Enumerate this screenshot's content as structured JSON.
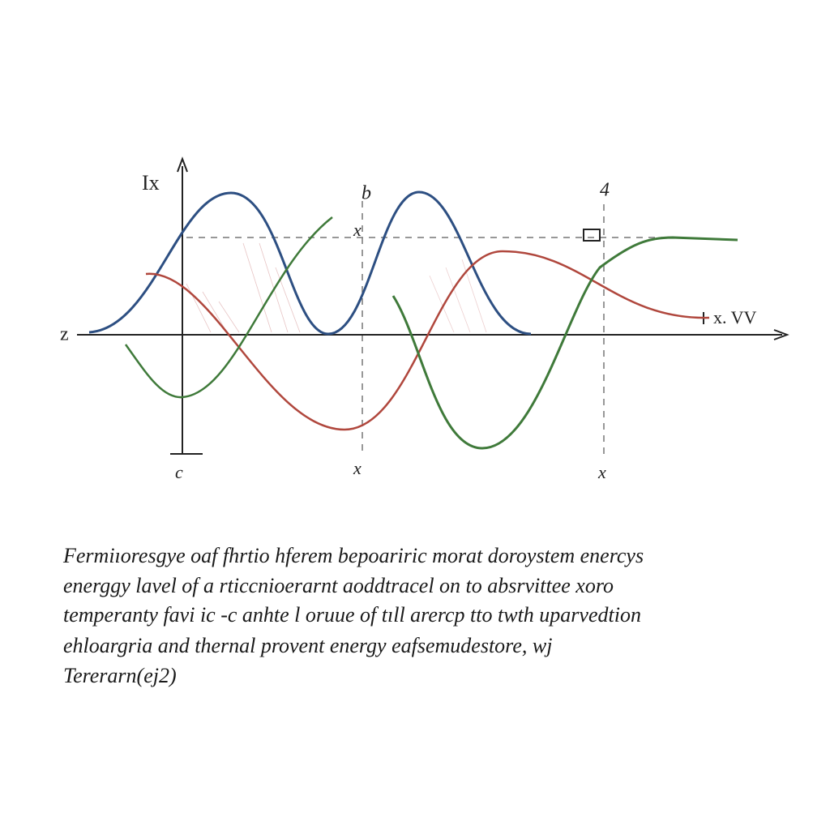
{
  "labels": {
    "y_axis": "Ix",
    "top_mid": "b",
    "mid_x": "x",
    "top_right": "4",
    "origin_left": "z",
    "right_end": "x. VV",
    "bottom_origin": "c",
    "bottom_mid": "x",
    "bottom_right": "x"
  },
  "caption": {
    "lines": [
      "Fermiıoresgye oaf fhrtio hferem bepoariric morat doroystem enercys",
      "energgy lavel of a rticcnioerarnt aoddtracel on to absrvittee xoro",
      "temperanty favi ic -c anhte l oruue of tıll arercp tto twth uparvedtion",
      "ehloargria and thernal provent energy eafsemudestore, wj",
      "Tererarn(ej2)"
    ]
  }
}
